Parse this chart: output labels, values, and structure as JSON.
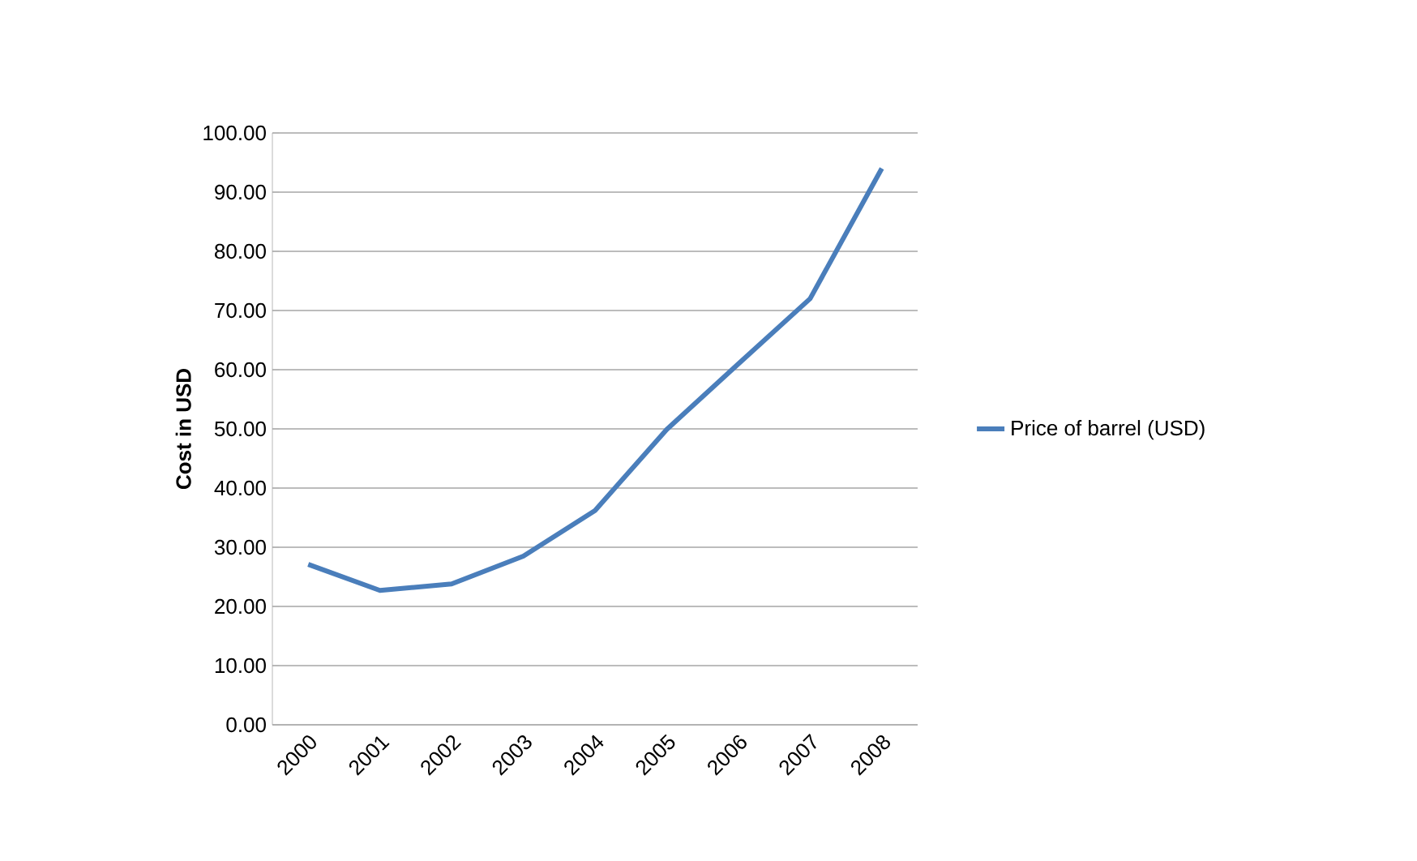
{
  "chart_data": {
    "type": "line",
    "ylabel": "Cost in USD",
    "categories": [
      "2000",
      "2001",
      "2002",
      "2003",
      "2004",
      "2005",
      "2006",
      "2007",
      "2008"
    ],
    "series": [
      {
        "name": "Price of barrel (USD)",
        "color": "#4a7ebb",
        "values": [
          27.1,
          22.7,
          23.8,
          28.5,
          36.2,
          49.9,
          61.0,
          72.0,
          94.0
        ]
      }
    ],
    "ylim": [
      0,
      100
    ],
    "yticks": [
      {
        "value": 0,
        "label": "0.00"
      },
      {
        "value": 10,
        "label": "10.00"
      },
      {
        "value": 20,
        "label": "20.00"
      },
      {
        "value": 30,
        "label": "30.00"
      },
      {
        "value": 40,
        "label": "40.00"
      },
      {
        "value": 50,
        "label": "50.00"
      },
      {
        "value": 60,
        "label": "60.00"
      },
      {
        "value": 70,
        "label": "70.00"
      },
      {
        "value": 80,
        "label": "80.00"
      },
      {
        "value": 90,
        "label": "90.00"
      },
      {
        "value": 100,
        "label": "100.00"
      }
    ],
    "grid": "y",
    "legend": "right"
  }
}
